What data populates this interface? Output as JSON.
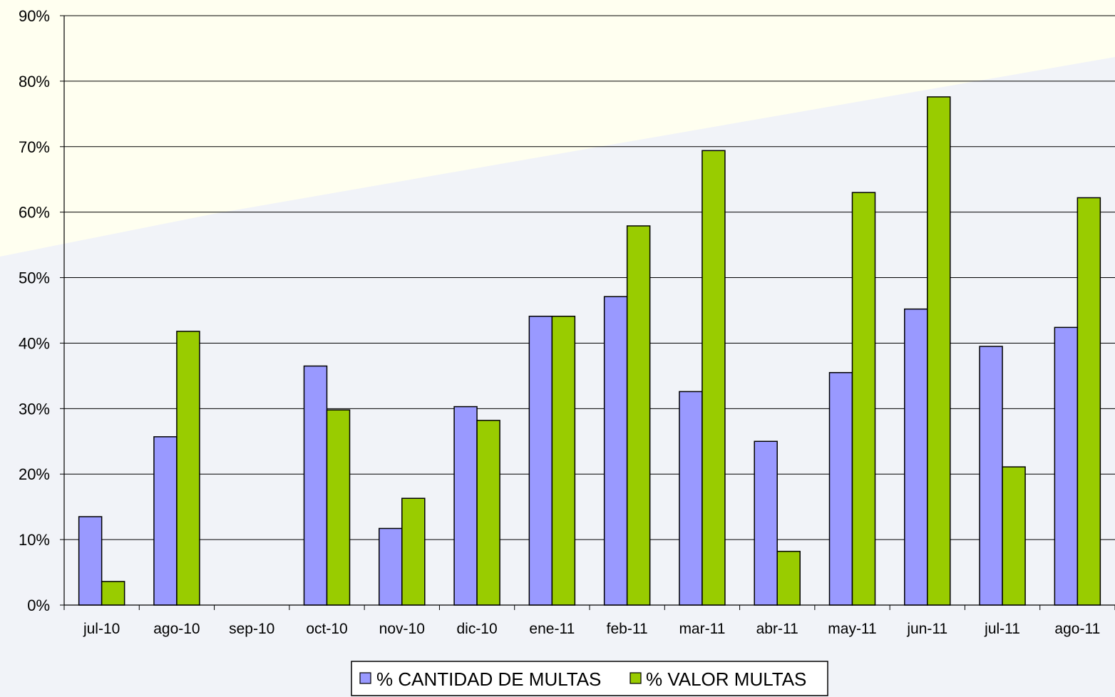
{
  "colors": {
    "series_cantidad": "#9999ff",
    "series_valor": "#99cc00",
    "grid": "#000000",
    "background_top": "#fffff0",
    "background_bottom": "#f1f3f8"
  },
  "chart_data": {
    "type": "bar",
    "title": "",
    "xlabel": "",
    "ylabel": "",
    "ylim": [
      0,
      90
    ],
    "yticks": [
      "0%",
      "10%",
      "20%",
      "30%",
      "40%",
      "50%",
      "60%",
      "70%",
      "80%",
      "90%"
    ],
    "grid": true,
    "legend_position": "bottom",
    "categories": [
      "jul-10",
      "ago-10",
      "sep-10",
      "oct-10",
      "nov-10",
      "dic-10",
      "ene-11",
      "feb-11",
      "mar-11",
      "abr-11",
      "may-11",
      "jun-11",
      "jul-11",
      "ago-11"
    ],
    "series": [
      {
        "name": "% CANTIDAD DE MULTAS",
        "values": [
          13.5,
          25.7,
          0,
          36.5,
          11.7,
          30.3,
          44.1,
          47.1,
          32.6,
          25.0,
          35.5,
          45.2,
          39.5,
          42.4
        ]
      },
      {
        "name": "% VALOR MULTAS",
        "values": [
          3.6,
          41.8,
          0,
          29.8,
          16.3,
          28.2,
          44.1,
          57.9,
          69.4,
          8.2,
          63.0,
          77.6,
          21.1,
          62.2
        ]
      }
    ]
  }
}
